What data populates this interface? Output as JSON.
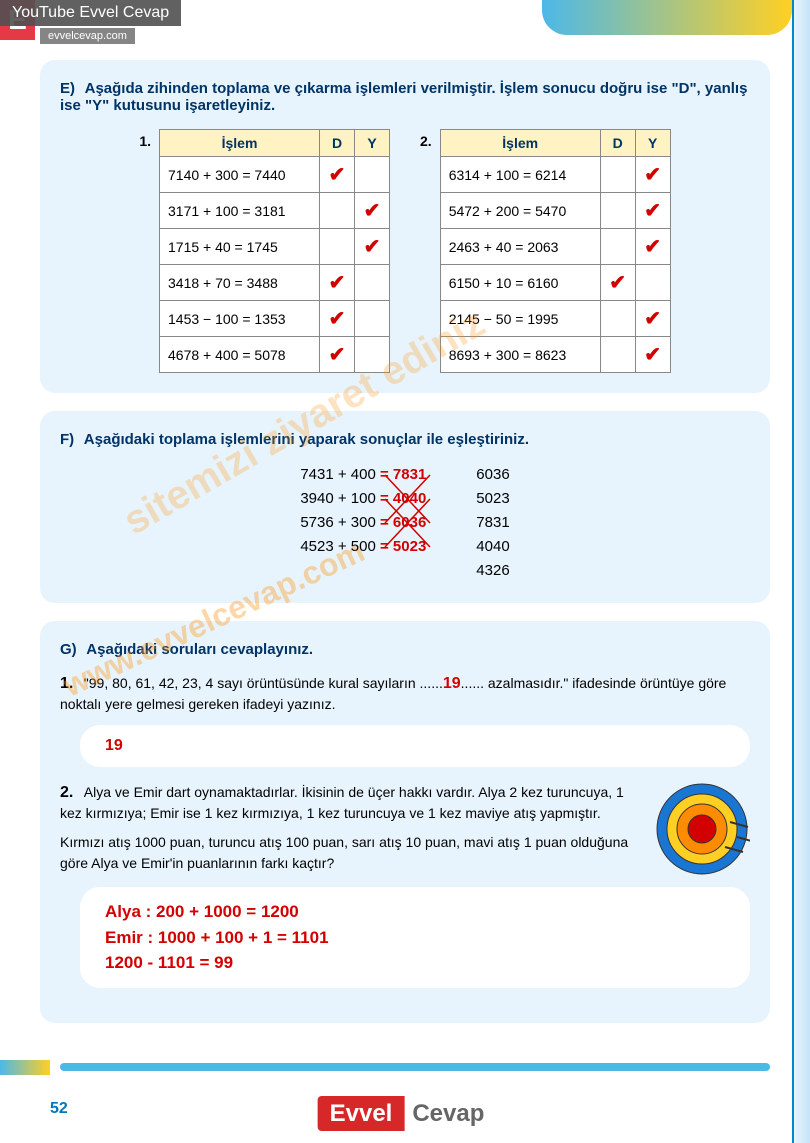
{
  "watermark": {
    "header": "YouTube Evvel Cevap",
    "sub": "evvelcevap.com",
    "badge": "E",
    "diagonal": "sitemizi ziyaret ediniz",
    "site": "www.evvelcevap.com"
  },
  "section_e": {
    "label": "E)",
    "title": "Aşağıda zihinden toplama ve çıkarma işlemleri verilmiştir. İşlem sonucu doğru ise \"D\", yanlış ise \"Y\" kutusunu işaretleyiniz.",
    "table_headers": [
      "İşlem",
      "D",
      "Y"
    ],
    "table1_num": "1.",
    "table1": [
      {
        "op": "7140 + 300  = 7440",
        "d": true,
        "y": false
      },
      {
        "op": "3171 + 100    = 3181",
        "d": false,
        "y": true
      },
      {
        "op": "1715 + 40     = 1745",
        "d": false,
        "y": true
      },
      {
        "op": "3418 + 70    = 3488",
        "d": true,
        "y": false
      },
      {
        "op": "1453 − 100  = 1353",
        "d": true,
        "y": false
      },
      {
        "op": "4678 + 400 = 5078",
        "d": true,
        "y": false
      }
    ],
    "table2_num": "2.",
    "table2": [
      {
        "op": "6314 + 100  = 6214",
        "d": false,
        "y": true
      },
      {
        "op": "5472 + 200 = 5470",
        "d": false,
        "y": true
      },
      {
        "op": "2463 + 40  = 2063",
        "d": false,
        "y": true
      },
      {
        "op": "6150 + 10    = 6160",
        "d": true,
        "y": false
      },
      {
        "op": "2145 − 50   = 1995",
        "d": false,
        "y": true
      },
      {
        "op": "8693 + 300 = 8623",
        "d": false,
        "y": true
      }
    ]
  },
  "section_f": {
    "label": "F)",
    "title": "Aşağıdaki toplama işlemlerini yaparak sonuçlar ile eşleştiriniz.",
    "left": [
      {
        "expr": "7431 + 400",
        "ans": "= 7831"
      },
      {
        "expr": "3940 + 100",
        "ans": "= 4040"
      },
      {
        "expr": "5736 + 300",
        "ans": "= 6036"
      },
      {
        "expr": "4523 + 500",
        "ans": "= 5023"
      }
    ],
    "right": [
      "6036",
      "5023",
      "7831",
      "4040",
      "4326"
    ],
    "match_lines": [
      {
        "from": 0,
        "to": 2
      },
      {
        "from": 1,
        "to": 3
      },
      {
        "from": 2,
        "to": 0
      },
      {
        "from": 3,
        "to": 1
      }
    ],
    "line_color": "#d30000"
  },
  "section_g": {
    "label": "G)",
    "title": "Aşağıdaki soruları cevaplayınız.",
    "q1": {
      "num": "1.",
      "text_pre": "\"99, 80, 61, 42, 23, 4 sayı örüntüsünde kural sayıların ......",
      "blank": "19",
      "text_post": "...... azalmasıdır.\" ifadesinde örüntüye göre noktalı yere gelmesi gereken ifadeyi yazınız.",
      "answer": "19"
    },
    "q2": {
      "num": "2.",
      "text1": "Alya ve Emir dart oynamaktadırlar. İkisinin de üçer hakkı vardır. Alya 2 kez turuncuya, 1 kez kırmızıya; Emir ise 1 kez kırmızıya, 1 kez turuncuya ve 1 kez maviye atış yapmıştır.",
      "text2": "Kırmızı atış 1000 puan, turuncu atış 100 puan, sarı atış 10 puan, mavi atış 1 puan olduğuna göre Alya ve Emir'in puanlarının farkı kaçtır?",
      "answer_lines": [
        "Alya : 200 + 1000 = 1200",
        "Emir : 1000 + 100 + 1 = 1101",
        "1200 - 1101 = 99"
      ]
    },
    "dartboard": {
      "rings": [
        {
          "r": 45,
          "color": "#1976d2"
        },
        {
          "r": 35,
          "color": "#ffd023"
        },
        {
          "r": 25,
          "color": "#ff8c00"
        },
        {
          "r": 14,
          "color": "#d30000"
        }
      ]
    }
  },
  "page_number": "52",
  "footer": {
    "evvel": "Evvel",
    "cevap": "Cevap"
  }
}
